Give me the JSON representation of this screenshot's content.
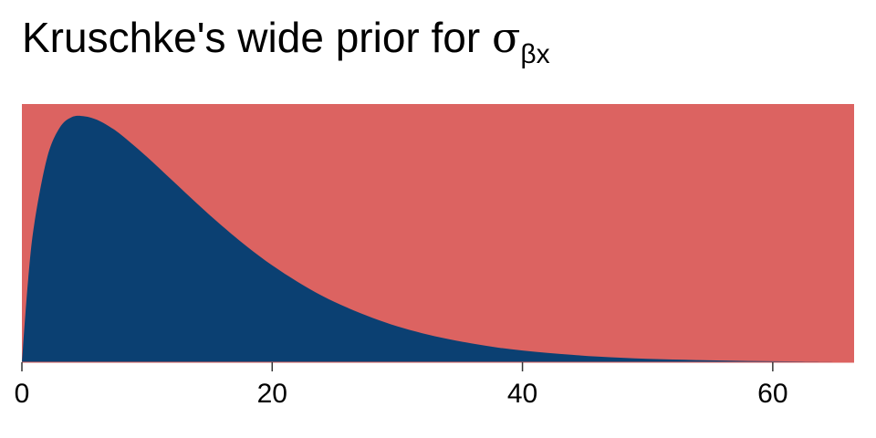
{
  "title": {
    "main": "Kruschke's wide prior for ",
    "symbol": "σ",
    "subscript": "βx"
  },
  "colors": {
    "background": "#dc6361",
    "density_fill": "#0b4072",
    "axis": "#000000"
  },
  "chart_data": {
    "type": "area",
    "title": "Kruschke's wide prior for σβx",
    "xlabel": "",
    "ylabel": "",
    "xlim": [
      0,
      66.5
    ],
    "ylim": [
      0,
      1.05
    ],
    "xticks": [
      0,
      20,
      40,
      60
    ],
    "xtick_labels": [
      "0",
      "20",
      "40",
      "60"
    ],
    "y_axis_shown": false,
    "grid": false,
    "mode": 5,
    "x": [
      0,
      0.5,
      1,
      2,
      3,
      4,
      5,
      6,
      7,
      8,
      10,
      12,
      14,
      16,
      18,
      20,
      22,
      24,
      26,
      28,
      30,
      32,
      34,
      36,
      38,
      40,
      42,
      44,
      46,
      48,
      50,
      52,
      54,
      56,
      58,
      60,
      62,
      64,
      66.5
    ],
    "y": [
      0,
      0.336,
      0.566,
      0.829,
      0.952,
      0.997,
      1.0,
      0.986,
      0.958,
      0.922,
      0.835,
      0.74,
      0.645,
      0.554,
      0.47,
      0.394,
      0.328,
      0.27,
      0.222,
      0.181,
      0.146,
      0.118,
      0.095,
      0.076,
      0.06,
      0.048,
      0.038,
      0.03,
      0.023,
      0.018,
      0.014,
      0.011,
      0.0088,
      0.0068,
      0.0053,
      0.0041,
      0.0032,
      0.0024,
      0.0017
    ]
  }
}
